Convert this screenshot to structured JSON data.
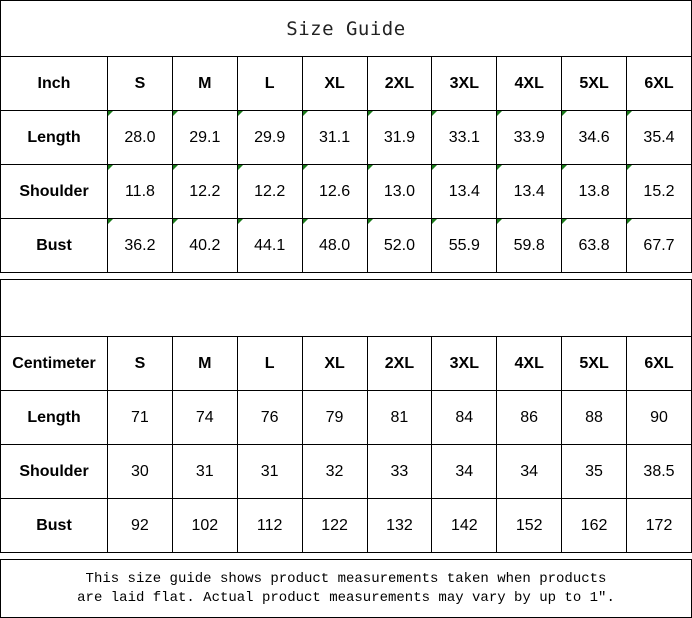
{
  "title": "Size Guide",
  "sizes": [
    "S",
    "M",
    "L",
    "XL",
    "2XL",
    "3XL",
    "4XL",
    "5XL",
    "6XL"
  ],
  "tables": [
    {
      "unit": "Inch",
      "rows": [
        {
          "label": "Length",
          "values": [
            "28.0",
            "29.1",
            "29.9",
            "31.1",
            "31.9",
            "33.1",
            "33.9",
            "34.6",
            "35.4"
          ]
        },
        {
          "label": "Shoulder",
          "values": [
            "11.8",
            "12.2",
            "12.2",
            "12.6",
            "13.0",
            "13.4",
            "13.4",
            "13.8",
            "15.2"
          ]
        },
        {
          "label": "Bust",
          "values": [
            "36.2",
            "40.2",
            "44.1",
            "48.0",
            "52.0",
            "55.9",
            "59.8",
            "63.8",
            "67.7"
          ]
        }
      ],
      "cell_marker_color": "#1a7a1a"
    },
    {
      "unit": "Centimeter",
      "rows": [
        {
          "label": "Length",
          "values": [
            "71",
            "74",
            "76",
            "79",
            "81",
            "84",
            "86",
            "88",
            "90"
          ]
        },
        {
          "label": "Shoulder",
          "values": [
            "30",
            "31",
            "31",
            "32",
            "33",
            "34",
            "34",
            "35",
            "38.5"
          ]
        },
        {
          "label": "Bust",
          "values": [
            "92",
            "102",
            "112",
            "122",
            "132",
            "142",
            "152",
            "162",
            "172"
          ]
        }
      ]
    }
  ],
  "footer": {
    "line1": "This size guide shows product measurements taken when products",
    "line2": "are laid flat. Actual product measurements may vary by up to 1″."
  }
}
